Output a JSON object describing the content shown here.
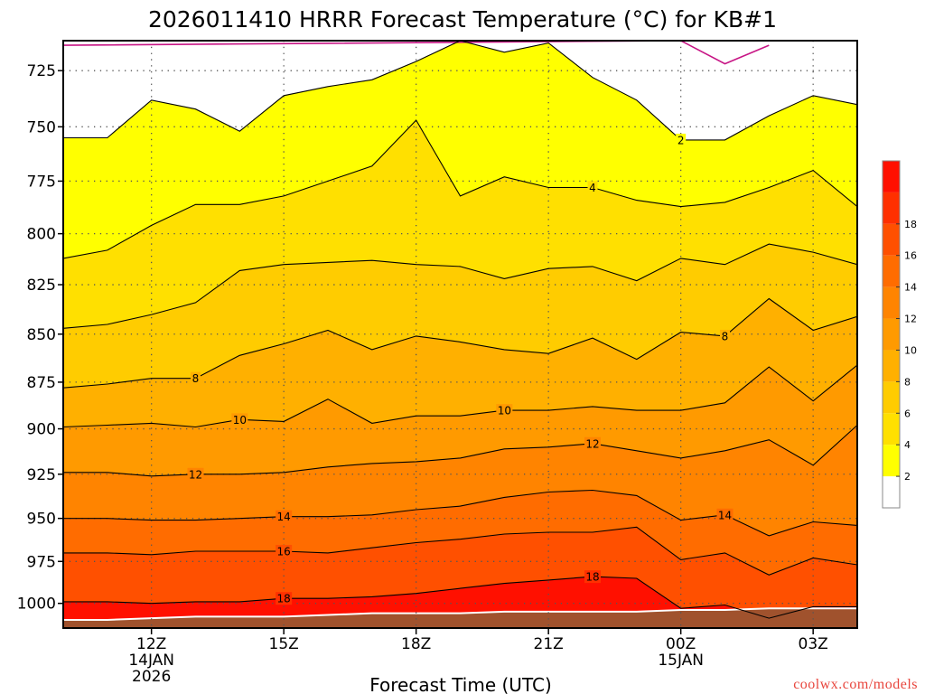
{
  "chart_data": {
    "type": "contour",
    "title": "2026011410 HRRR Forecast Temperature (°C) for KB#1",
    "xlabel": "Forecast Time (UTC)",
    "ylabel": "",
    "credit": "coolwx.com/models",
    "x_hours": [
      10,
      11,
      12,
      13,
      14,
      15,
      16,
      17,
      18,
      19,
      20,
      21,
      22,
      23,
      24,
      25,
      26,
      27,
      28
    ],
    "xlim": [
      10,
      28
    ],
    "x_ticks": [
      {
        "hour": 12,
        "lines": [
          "12Z",
          "14JAN",
          "2026"
        ]
      },
      {
        "hour": 15,
        "lines": [
          "15Z"
        ]
      },
      {
        "hour": 18,
        "lines": [
          "18Z"
        ]
      },
      {
        "hour": 21,
        "lines": [
          "21Z"
        ]
      },
      {
        "hour": 24,
        "lines": [
          "00Z",
          "15JAN"
        ]
      },
      {
        "hour": 27,
        "lines": [
          "03Z"
        ]
      }
    ],
    "y_axis": {
      "type": "log-pressure",
      "units": "hPa",
      "inverted": true,
      "ylim": [
        1015,
        712
      ]
    },
    "y_ticks": [
      {
        "value": 725,
        "label": "725"
      },
      {
        "value": 750,
        "label": "750"
      },
      {
        "value": 775,
        "label": "775"
      },
      {
        "value": 800,
        "label": "800"
      },
      {
        "value": 825,
        "label": "825"
      },
      {
        "value": 850,
        "label": "850"
      },
      {
        "value": 875,
        "label": "875"
      },
      {
        "value": 900,
        "label": "900"
      },
      {
        "value": 925,
        "label": "925"
      },
      {
        "value": 950,
        "label": "950"
      },
      {
        "value": 975,
        "label": "975"
      },
      {
        "value": 1000,
        "label": "1000"
      }
    ],
    "grid": true,
    "levels": [
      {
        "level": 0,
        "color": "#c71585",
        "pressures": [
          714,
          null,
          null,
          null,
          null,
          null,
          null,
          null,
          null,
          null,
          null,
          null,
          null,
          null,
          712,
          722,
          714,
          null,
          null
        ]
      },
      {
        "level": 2,
        "color": "#ffff00",
        "pressures": [
          755,
          755,
          738,
          742,
          752,
          736,
          732,
          729,
          721,
          712,
          717,
          713,
          728,
          738,
          756,
          756,
          745,
          736,
          740
        ]
      },
      {
        "level": 4,
        "color": "#ffe000",
        "pressures": [
          812,
          808,
          796,
          786,
          786,
          782,
          775,
          768,
          747,
          782,
          773,
          778,
          778,
          784,
          787,
          785,
          778,
          770,
          787
        ]
      },
      {
        "level": 6,
        "color": "#ffcc00",
        "pressures": [
          847,
          845,
          840,
          834,
          818,
          815,
          814,
          813,
          815,
          816,
          822,
          817,
          816,
          823,
          812,
          815,
          805,
          809,
          815
        ]
      },
      {
        "level": 8,
        "color": "#ffb000",
        "pressures": [
          878,
          876,
          873,
          873,
          861,
          855,
          848,
          858,
          851,
          854,
          858,
          860,
          852,
          863,
          849,
          851,
          832,
          848,
          841
        ]
      },
      {
        "level": 10,
        "color": "#ff9a00",
        "pressures": [
          899,
          898,
          897,
          899,
          895,
          896,
          884,
          897,
          893,
          893,
          890,
          890,
          888,
          890,
          890,
          886,
          867,
          885,
          866
        ]
      },
      {
        "level": 12,
        "color": "#ff8400",
        "pressures": [
          924,
          924,
          926,
          925,
          925,
          924,
          921,
          919,
          918,
          916,
          911,
          910,
          908,
          912,
          916,
          912,
          906,
          920,
          898
        ]
      },
      {
        "level": 14,
        "color": "#ff6c00",
        "pressures": [
          950,
          950,
          951,
          951,
          950,
          949,
          949,
          948,
          945,
          943,
          938,
          935,
          934,
          937,
          951,
          948,
          960,
          952,
          954
        ]
      },
      {
        "level": 16,
        "color": "#ff5000",
        "pressures": [
          970,
          970,
          971,
          969,
          969,
          969,
          970,
          967,
          964,
          962,
          959,
          958,
          958,
          955,
          974,
          970,
          983,
          973,
          977
        ]
      },
      {
        "level": 18,
        "color": "#ff3000",
        "pressures": [
          999,
          999,
          1000,
          999,
          999,
          997,
          997,
          996,
          994,
          991,
          988,
          986,
          984,
          985,
          1003,
          1001,
          1009,
          1002,
          1002
        ]
      }
    ],
    "warmest_color": "#ff1000",
    "ground": {
      "color": "#a0522d",
      "pressures": [
        1010,
        1010,
        1009,
        1008,
        1008,
        1008,
        1007,
        1006,
        1006,
        1006,
        1005,
        1005,
        1005,
        1005,
        1004,
        1004,
        1003,
        1003,
        1003
      ]
    },
    "contour_labels": [
      {
        "text": "2",
        "level": 2,
        "hour": 24.0
      },
      {
        "text": "4",
        "level": 4,
        "hour": 22.0
      },
      {
        "text": "8",
        "level": 8,
        "hour": 13.0
      },
      {
        "text": "8",
        "level": 8,
        "hour": 25.0
      },
      {
        "text": "10",
        "level": 10,
        "hour": 14.0
      },
      {
        "text": "10",
        "level": 10,
        "hour": 20.0
      },
      {
        "text": "12",
        "level": 12,
        "hour": 13.0
      },
      {
        "text": "12",
        "level": 12,
        "hour": 22.0
      },
      {
        "text": "14",
        "level": 14,
        "hour": 15.0
      },
      {
        "text": "14",
        "level": 14,
        "hour": 25.0
      },
      {
        "text": "16",
        "level": 16,
        "hour": 15.0
      },
      {
        "text": "18",
        "level": 18,
        "hour": 15.0
      },
      {
        "text": "18",
        "level": 18,
        "hour": 22.0
      }
    ],
    "colorbar": {
      "colors": [
        "#ffffff",
        "#ffff00",
        "#ffe000",
        "#ffcc00",
        "#ffb000",
        "#ff9a00",
        "#ff8400",
        "#ff6c00",
        "#ff5000",
        "#ff3000",
        "#ff1000"
      ],
      "labels": [
        "2",
        "4",
        "6",
        "8",
        "10",
        "12",
        "14",
        "16",
        "18"
      ]
    }
  }
}
